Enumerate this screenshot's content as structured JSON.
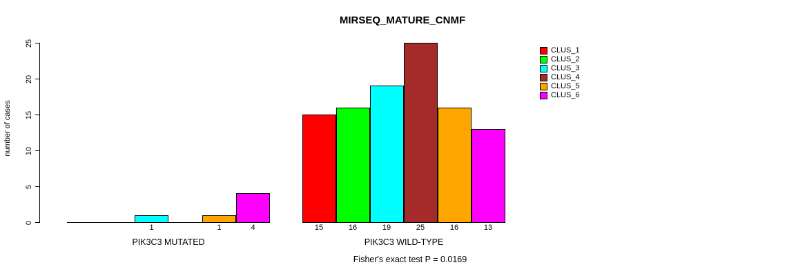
{
  "chart_data": {
    "type": "bar",
    "title": "MIRSEQ_MATURE_CNMF",
    "ylabel": "number of cases",
    "xlabel": "",
    "ylim": [
      0,
      25
    ],
    "yticks": [
      0,
      5,
      10,
      15,
      20,
      25
    ],
    "grid": false,
    "legend_position": "right",
    "categories": [
      "PIK3C3 MUTATED",
      "PIK3C3 WILD-TYPE"
    ],
    "series": [
      {
        "name": "CLUS_1",
        "color": "#FF0000",
        "values": [
          0,
          15
        ]
      },
      {
        "name": "CLUS_2",
        "color": "#00FF00",
        "values": [
          0,
          16
        ]
      },
      {
        "name": "CLUS_3",
        "color": "#00FFFF",
        "values": [
          1,
          19
        ]
      },
      {
        "name": "CLUS_4",
        "color": "#A52A2A",
        "values": [
          0,
          25
        ]
      },
      {
        "name": "CLUS_5",
        "color": "#FFA500",
        "values": [
          1,
          16
        ]
      },
      {
        "name": "CLUS_6",
        "color": "#FF00FF",
        "values": [
          4,
          13
        ]
      }
    ],
    "bar_value_labels": {
      "PIK3C3 MUTATED": [
        "",
        "",
        "1",
        "",
        "1",
        "4"
      ],
      "PIK3C3 WILD-TYPE": [
        "15",
        "16",
        "19",
        "25",
        "16",
        "13"
      ]
    },
    "annotation": "Fisher's exact test P = 0.0169",
    "axis_color": "#000000",
    "background_color": "#FFFFFF"
  }
}
